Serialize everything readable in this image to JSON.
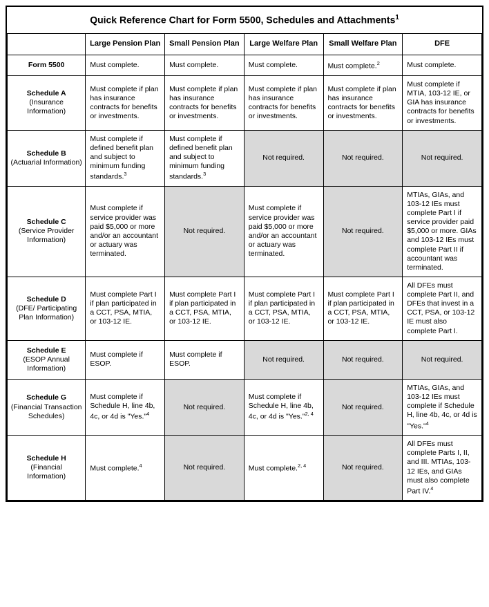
{
  "title": "Quick Reference Chart for Form 5500, Schedules and Attachments",
  "title_sup": "1",
  "columns": [
    "Large Pension Plan",
    "Small Pension Plan",
    "Large Welfare Plan",
    "Small Welfare Plan",
    "DFE"
  ],
  "rows": [
    {
      "label_main": "Form 5500",
      "label_sub": "",
      "cells": [
        {
          "text": "Must complete.",
          "shaded": false
        },
        {
          "text": "Must complete.",
          "shaded": false
        },
        {
          "text": "Must complete.",
          "shaded": false
        },
        {
          "text": "Must complete.",
          "sup": "2",
          "shaded": false
        },
        {
          "text": "Must complete.",
          "shaded": false
        }
      ]
    },
    {
      "label_main": "Schedule A",
      "label_sub": "(Insurance Information)",
      "cells": [
        {
          "text": "Must complete if plan has insurance contracts for benefits or investments.",
          "shaded": false
        },
        {
          "text": "Must complete if plan has insurance contracts for benefits or investments.",
          "shaded": false
        },
        {
          "text": "Must complete if plan has insurance contracts for benefits or investments.",
          "shaded": false
        },
        {
          "text": "Must complete if plan has insurance contracts for benefits or investments.",
          "shaded": false
        },
        {
          "text": "Must complete if MTIA, 103-12 IE, or GIA has insurance contracts for benefits or investments.",
          "shaded": false
        }
      ]
    },
    {
      "label_main": "Schedule B",
      "label_sub": "(Actuarial Information)",
      "cells": [
        {
          "text": "Must complete if defined benefit plan and subject to minimum funding standards.",
          "sup": "3",
          "shaded": false
        },
        {
          "text": "Must complete if defined benefit plan and subject to minimum funding standards.",
          "sup": "3",
          "shaded": false
        },
        {
          "text": "Not required.",
          "shaded": true,
          "center": true
        },
        {
          "text": "Not required.",
          "shaded": true,
          "center": true
        },
        {
          "text": "Not required.",
          "shaded": true,
          "center": true
        }
      ]
    },
    {
      "label_main": "Schedule C",
      "label_sub": "(Service Provider Information)",
      "cells": [
        {
          "text": "Must complete if service provider was paid $5,000 or more and/or an accountant or actuary was terminated.",
          "shaded": false
        },
        {
          "text": "Not required.",
          "shaded": true,
          "center": true
        },
        {
          "text": "Must complete if service provider was paid $5,000 or more and/or an accountant or actuary was terminated.",
          "shaded": false
        },
        {
          "text": "Not required.",
          "shaded": true,
          "center": true
        },
        {
          "text": "MTIAs, GIAs, and 103-12 IEs must complete Part I if service provider paid $5,000 or more. GIAs and 103-12 IEs must complete Part II if accountant was terminated.",
          "shaded": false
        }
      ]
    },
    {
      "label_main": "Schedule D",
      "label_sub": "(DFE/ Participating Plan Information)",
      "cells": [
        {
          "text": "Must complete Part I if plan participated in a CCT, PSA, MTIA, or 103-12 IE.",
          "shaded": false
        },
        {
          "text": "Must complete Part I if plan participated in a CCT, PSA, MTIA, or 103-12 IE.",
          "shaded": false
        },
        {
          "text": "Must complete Part I if plan participated in a CCT, PSA, MTIA, or 103-12 IE.",
          "shaded": false
        },
        {
          "text": "Must complete Part I if plan participated in a CCT, PSA, MTIA, or 103-12 IE.",
          "shaded": false
        },
        {
          "text": "All DFEs must complete Part II, and DFEs that invest in a CCT, PSA, or 103-12 IE must also complete Part I.",
          "shaded": false
        }
      ]
    },
    {
      "label_main": "Schedule E",
      "label_sub": "(ESOP Annual Information)",
      "cells": [
        {
          "text": "Must complete if ESOP.",
          "shaded": false
        },
        {
          "text": "Must complete if ESOP.",
          "shaded": false
        },
        {
          "text": "Not required.",
          "shaded": true,
          "center": true
        },
        {
          "text": "Not required.",
          "shaded": true,
          "center": true
        },
        {
          "text": "Not required.",
          "shaded": true,
          "center": true
        }
      ]
    },
    {
      "label_main": "Schedule G",
      "label_sub": "(Financial Transaction Schedules)",
      "cells": [
        {
          "text": "Must complete if Schedule H, line 4b, 4c, or 4d is \"Yes.\"",
          "sup": "4",
          "shaded": false
        },
        {
          "text": "Not required.",
          "shaded": true,
          "center": true
        },
        {
          "text": "Must complete if Schedule H, line 4b, 4c, or 4d is \"Yes.\"",
          "sup": "2, 4",
          "shaded": false
        },
        {
          "text": "Not required.",
          "shaded": true,
          "center": true
        },
        {
          "text": "MTIAs, GIAs, and 103-12 IEs must complete if Schedule H, line 4b, 4c, or 4d is \"Yes.\"",
          "sup": "4",
          "shaded": false
        }
      ]
    },
    {
      "label_main": "Schedule H",
      "label_sub": "(Financial Information)",
      "cells": [
        {
          "text": "Must complete.",
          "sup": "4",
          "shaded": false
        },
        {
          "text": "Not required.",
          "shaded": true,
          "center": true
        },
        {
          "text": "Must complete.",
          "sup": "2, 4",
          "shaded": false
        },
        {
          "text": "Not required.",
          "shaded": true,
          "center": true
        },
        {
          "text": "All DFEs must complete Parts I, II, and III. MTIAs, 103-12 IEs, and GIAs must also complete Part IV.",
          "sup": "4",
          "shaded": false
        }
      ]
    }
  ]
}
